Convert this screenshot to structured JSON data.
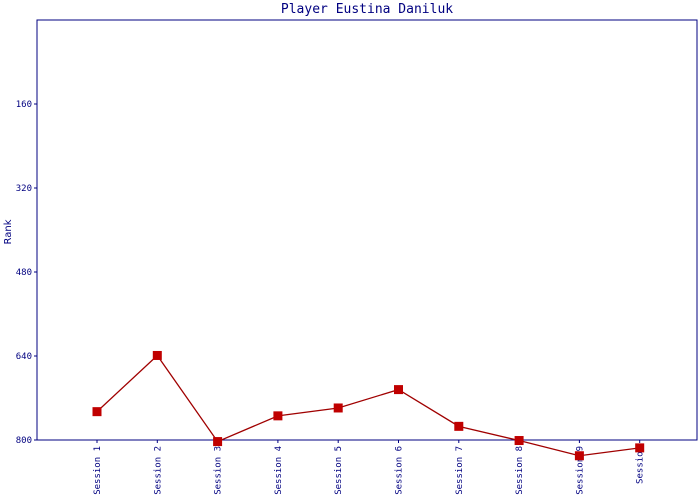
{
  "chart_data": {
    "type": "line",
    "title": "Player Eustina Daniluk",
    "ylabel": "Rank",
    "xlabel": "",
    "y_inverted": true,
    "ylim": [
      0,
      800
    ],
    "yticks": [
      160,
      320,
      480,
      640,
      800
    ],
    "grid": false,
    "categories": [
      "Session 1",
      "Session 2",
      "Session 3",
      "Session 4",
      "Session 5",
      "Session 6",
      "Session 7",
      "Session 8",
      "Session 9",
      "Session"
    ],
    "series": [
      {
        "values": [
          746,
          639,
          803,
          754,
          739,
          704,
          774,
          801,
          830,
          815
        ]
      }
    ]
  },
  "colors": {
    "axis": "#000080",
    "line": "#a00000",
    "marker": "#c00000",
    "background": "#ffffff"
  }
}
